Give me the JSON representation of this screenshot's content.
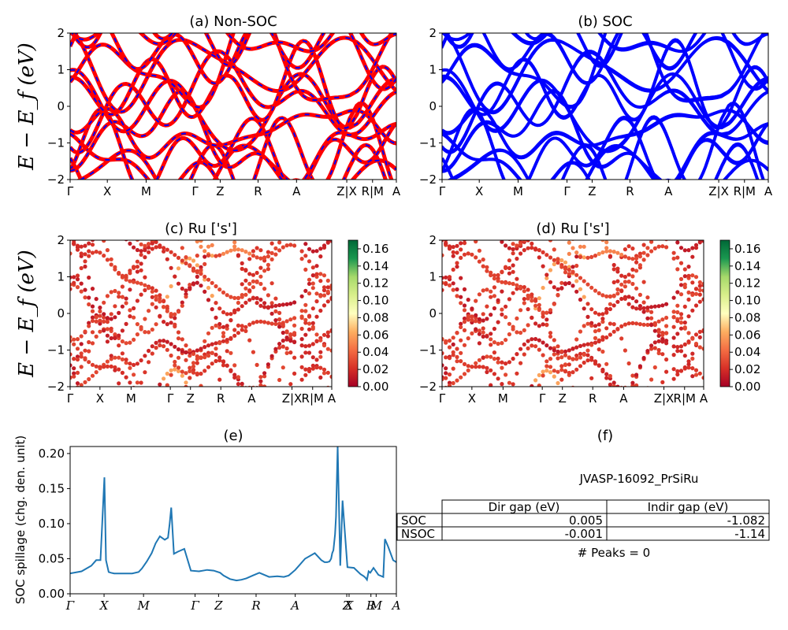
{
  "chart_data": [
    {
      "id": "a",
      "type": "line",
      "title": "(a) Non-SOC",
      "ylabel": "E − E_f (eV)",
      "ylim": [
        -2,
        2
      ],
      "yticks": [
        "2",
        "1",
        "0",
        "−1",
        "−2"
      ],
      "kpath": [
        "Γ",
        "X",
        "M",
        "Γ",
        "Z",
        "R",
        "A",
        "Z|X",
        "R|M",
        "A"
      ],
      "series_style": "red bands overlaid with blue dashed bands",
      "colors": {
        "primary": "#ff0000",
        "secondary": "#0000ff"
      }
    },
    {
      "id": "b",
      "type": "line",
      "title": "(b) SOC",
      "ylim": [
        -2,
        2
      ],
      "yticks": [
        "2",
        "1",
        "0",
        "−1",
        "−2"
      ],
      "kpath": [
        "Γ",
        "X",
        "M",
        "Γ",
        "Z",
        "R",
        "A",
        "Z|X",
        "R|M",
        "A"
      ],
      "colors": {
        "primary": "#0000ff"
      }
    },
    {
      "id": "c",
      "type": "scatter",
      "title": "(c)  Ru ['s']",
      "ylabel": "E − E_f (eV)",
      "ylim": [
        -2,
        2
      ],
      "yticks": [
        "2",
        "1",
        "0",
        "−1",
        "−2"
      ],
      "kpath": [
        "Γ",
        "X",
        "M",
        "Γ",
        "Z",
        "R",
        "A",
        "Z|X",
        "R|M",
        "A"
      ],
      "colorbar": {
        "ticks": [
          "0.16",
          "0.14",
          "0.12",
          "0.10",
          "0.08",
          "0.06",
          "0.04",
          "0.02",
          "0.00"
        ],
        "range": [
          0,
          0.17
        ],
        "colormap": "RdYlGn"
      }
    },
    {
      "id": "d",
      "type": "scatter",
      "title": "(d) Ru ['s']",
      "ylim": [
        -2,
        2
      ],
      "yticks": [
        "2",
        "1",
        "0",
        "−1",
        "−2"
      ],
      "kpath": [
        "Γ",
        "X",
        "M",
        "Γ",
        "Z",
        "R",
        "A",
        "Z|X",
        "R|M",
        "A"
      ],
      "colorbar": {
        "ticks": [
          "0.16",
          "0.14",
          "0.12",
          "0.10",
          "0.08",
          "0.06",
          "0.04",
          "0.02",
          "0.00"
        ],
        "range": [
          0,
          0.17
        ],
        "colormap": "RdYlGn"
      }
    },
    {
      "id": "e",
      "type": "line",
      "title": "(e)",
      "ylabel": "SOC spillage (chg. den. unit)",
      "ylim": [
        0,
        0.21
      ],
      "yticks": [
        "0.20",
        "0.15",
        "0.10",
        "0.05",
        "0.00"
      ],
      "kpath": [
        "Γ",
        "X",
        "M",
        "Γ",
        "Z",
        "R",
        "A",
        "Z",
        "X",
        "R",
        "M",
        "A"
      ],
      "color": "#1f77b4",
      "x": [
        0,
        0.035,
        0.065,
        0.08,
        0.093,
        0.105,
        0.11,
        0.118,
        0.125,
        0.135,
        0.16,
        0.19,
        0.21,
        0.22,
        0.235,
        0.25,
        0.262,
        0.275,
        0.29,
        0.3,
        0.305,
        0.31,
        0.318,
        0.33,
        0.35,
        0.37,
        0.395,
        0.42,
        0.44,
        0.46,
        0.47,
        0.49,
        0.51,
        0.525,
        0.54,
        0.56,
        0.58,
        0.61,
        0.635,
        0.655,
        0.67,
        0.69,
        0.72,
        0.75,
        0.77,
        0.78,
        0.788,
        0.795,
        0.8,
        0.8035,
        0.807,
        0.812,
        0.815,
        0.82,
        0.828,
        0.835,
        0.85,
        0.87,
        0.89,
        0.9,
        0.905,
        0.91,
        0.915,
        0.92,
        0.93,
        0.945,
        0.96,
        0.965,
        0.975,
        0.99,
        1.0
      ],
      "values": [
        0.029,
        0.032,
        0.04,
        0.048,
        0.048,
        0.166,
        0.048,
        0.031,
        0.03,
        0.029,
        0.029,
        0.029,
        0.031,
        0.036,
        0.046,
        0.058,
        0.072,
        0.082,
        0.077,
        0.08,
        0.1,
        0.123,
        0.057,
        0.06,
        0.064,
        0.033,
        0.032,
        0.034,
        0.033,
        0.03,
        0.026,
        0.021,
        0.019,
        0.02,
        0.022,
        0.026,
        0.03,
        0.024,
        0.025,
        0.024,
        0.026,
        0.034,
        0.05,
        0.058,
        0.048,
        0.045,
        0.045,
        0.046,
        0.05,
        0.058,
        0.062,
        0.085,
        0.11,
        0.21,
        0.04,
        0.133,
        0.038,
        0.037,
        0.028,
        0.025,
        0.023,
        0.02,
        0.032,
        0.03,
        0.037,
        0.027,
        0.024,
        0.078,
        0.067,
        0.048,
        0.045
      ]
    }
  ],
  "table": {
    "title": "(f)",
    "material": "JVASP-16092_PrSiRu",
    "columns": [
      "Dir gap (eV)",
      "Indir gap (eV)"
    ],
    "rows": [
      {
        "label": "SOC",
        "dir": "0.005",
        "indir": "-1.082"
      },
      {
        "label": "NSOC",
        "dir": "-0.001",
        "indir": "-1.14"
      }
    ],
    "peaks": "# Peaks = 0"
  }
}
